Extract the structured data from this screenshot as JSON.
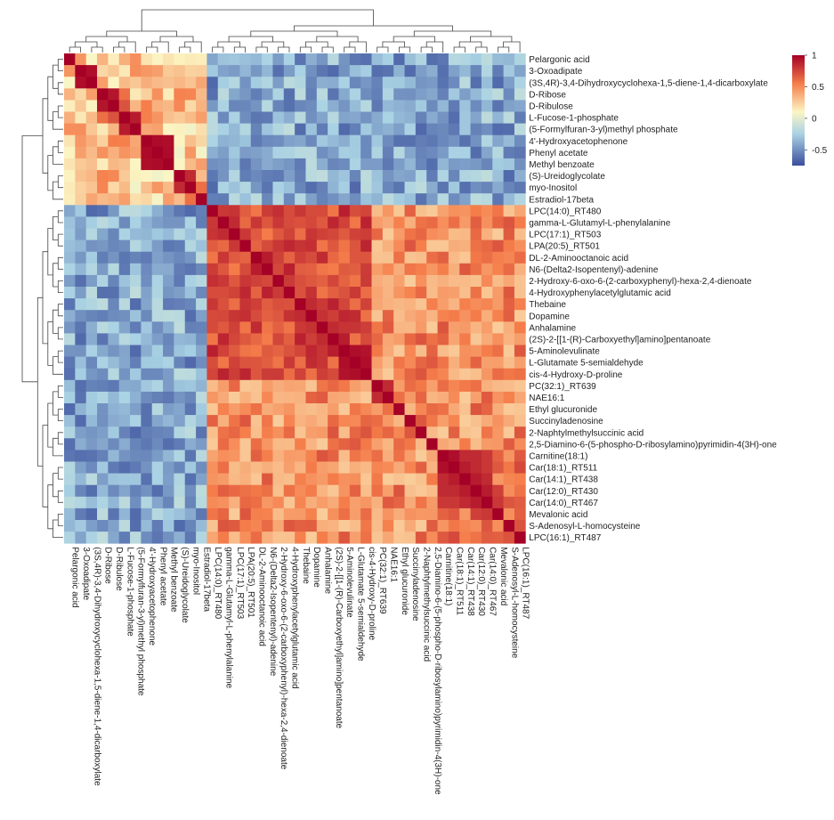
{
  "chart_data": {
    "type": "heatmap",
    "title": "",
    "xlabel": "",
    "ylabel": "",
    "labels": [
      "Pelargonic acid",
      "3-Oxoadipate",
      "(3S,4R)-3,4-Dihydroxycyclohexa-1,5-diene-1,4-dicarboxylate",
      "D-Ribose",
      "D-Ribulose",
      "L-Fucose-1-phosphate",
      "(5-Formylfuran-3-yl)methyl phosphate",
      "4'-Hydroxyacetophenone",
      "Phenyl acetate",
      "Methyl benzoate",
      "(S)-Ureidoglycolate",
      "myo-Inositol",
      "Estradiol-17beta",
      "LPC(14:0)_RT480",
      "gamma-L-Glutamyl-L-phenylalanine",
      "LPC(17:1)_RT503",
      "LPA(20:5)_RT501",
      "DL-2-Aminooctanoic acid",
      "N6-(Delta2-Isopentenyl)-adenine",
      "2-Hydroxy-6-oxo-6-(2-carboxyphenyl)-hexa-2,4-dienoate",
      "4-Hydroxyphenylacetylglutamic acid",
      "Thebaine",
      "Dopamine",
      "Anhalamine",
      "(2S)-2-[[1-(R)-Carboxyethyl]amino]pentanoate",
      "5-Aminolevulinate",
      "L-Glutamate 5-semialdehyde",
      "cis-4-Hydroxy-D-proline",
      "PC(32:1)_RT639",
      "NAE16:1",
      "Ethyl glucuronide",
      "Succinyladenosine",
      "2-Naphtylmethylsuccinic acid",
      "2,5-Diamino-6-(5-phospho-D-ribosylamino)pyrimidin-4(3H)-one",
      "Carnitine(18:1)",
      "Car(18:1)_RT511",
      "Car(14:1)_RT438",
      "Car(12:0)_RT430",
      "Car(14:0)_RT467",
      "Mevalonic acid",
      "S-Adenosyl-L-homocysteine",
      "LPC(16:1)_RT487"
    ],
    "cluster_a_size": 13,
    "value_range": [
      -0.75,
      1
    ],
    "legend": {
      "position": "top-right",
      "ticks": [
        {
          "value": 1,
          "label": "1"
        },
        {
          "value": 0.5,
          "label": "0.5"
        },
        {
          "value": 0,
          "label": "0"
        },
        {
          "value": -0.5,
          "label": "-0.5"
        }
      ]
    },
    "colors": {
      "low": "#3a4e9c",
      "mid_low": "#a9d2e4",
      "mid": "#fbf6c4",
      "mid_high": "#f57d4a",
      "high": "#a50026"
    }
  }
}
